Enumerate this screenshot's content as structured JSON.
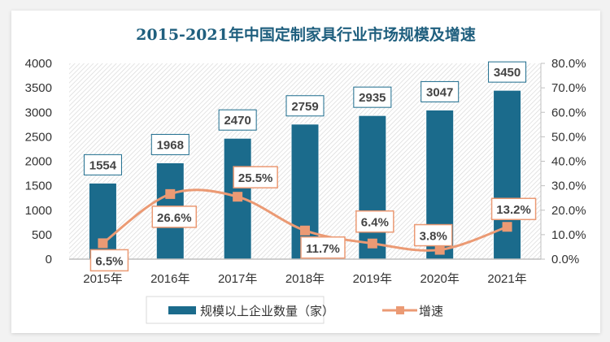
{
  "chart_data": {
    "type": "bar+line",
    "title": "2015-2021年中国定制家具行业市场规模及增速",
    "categories": [
      "2015年",
      "2016年",
      "2017年",
      "2018年",
      "2019年",
      "2020年",
      "2021年"
    ],
    "series": [
      {
        "name": "规模以上企业数量（家）",
        "type": "bar",
        "axis": "left",
        "values": [
          1554,
          1968,
          2470,
          2759,
          2935,
          3047,
          3450
        ],
        "labels": [
          "1554",
          "1968",
          "2470",
          "2759",
          "2935",
          "3047",
          "3450"
        ],
        "color": "#1b6b8c"
      },
      {
        "name": "增速",
        "type": "line",
        "axis": "right",
        "values": [
          6.5,
          26.6,
          25.5,
          11.7,
          6.4,
          3.8,
          13.2
        ],
        "labels": [
          "6.5%",
          "26.6%",
          "25.5%",
          "11.7%",
          "6.4%",
          "3.8%",
          "13.2%"
        ],
        "color": "#eb9a74"
      }
    ],
    "yleft": {
      "range": [
        0,
        4000
      ],
      "ticks": [
        "0",
        "500",
        "1000",
        "1500",
        "2000",
        "2500",
        "3000",
        "3500",
        "4000"
      ]
    },
    "yright": {
      "range": [
        0,
        80
      ],
      "ticks": [
        "0.0%",
        "10.0%",
        "20.0%",
        "30.0%",
        "40.0%",
        "50.0%",
        "60.0%",
        "70.0%",
        "80.0%"
      ]
    },
    "grid": false,
    "legend": "bottom"
  }
}
